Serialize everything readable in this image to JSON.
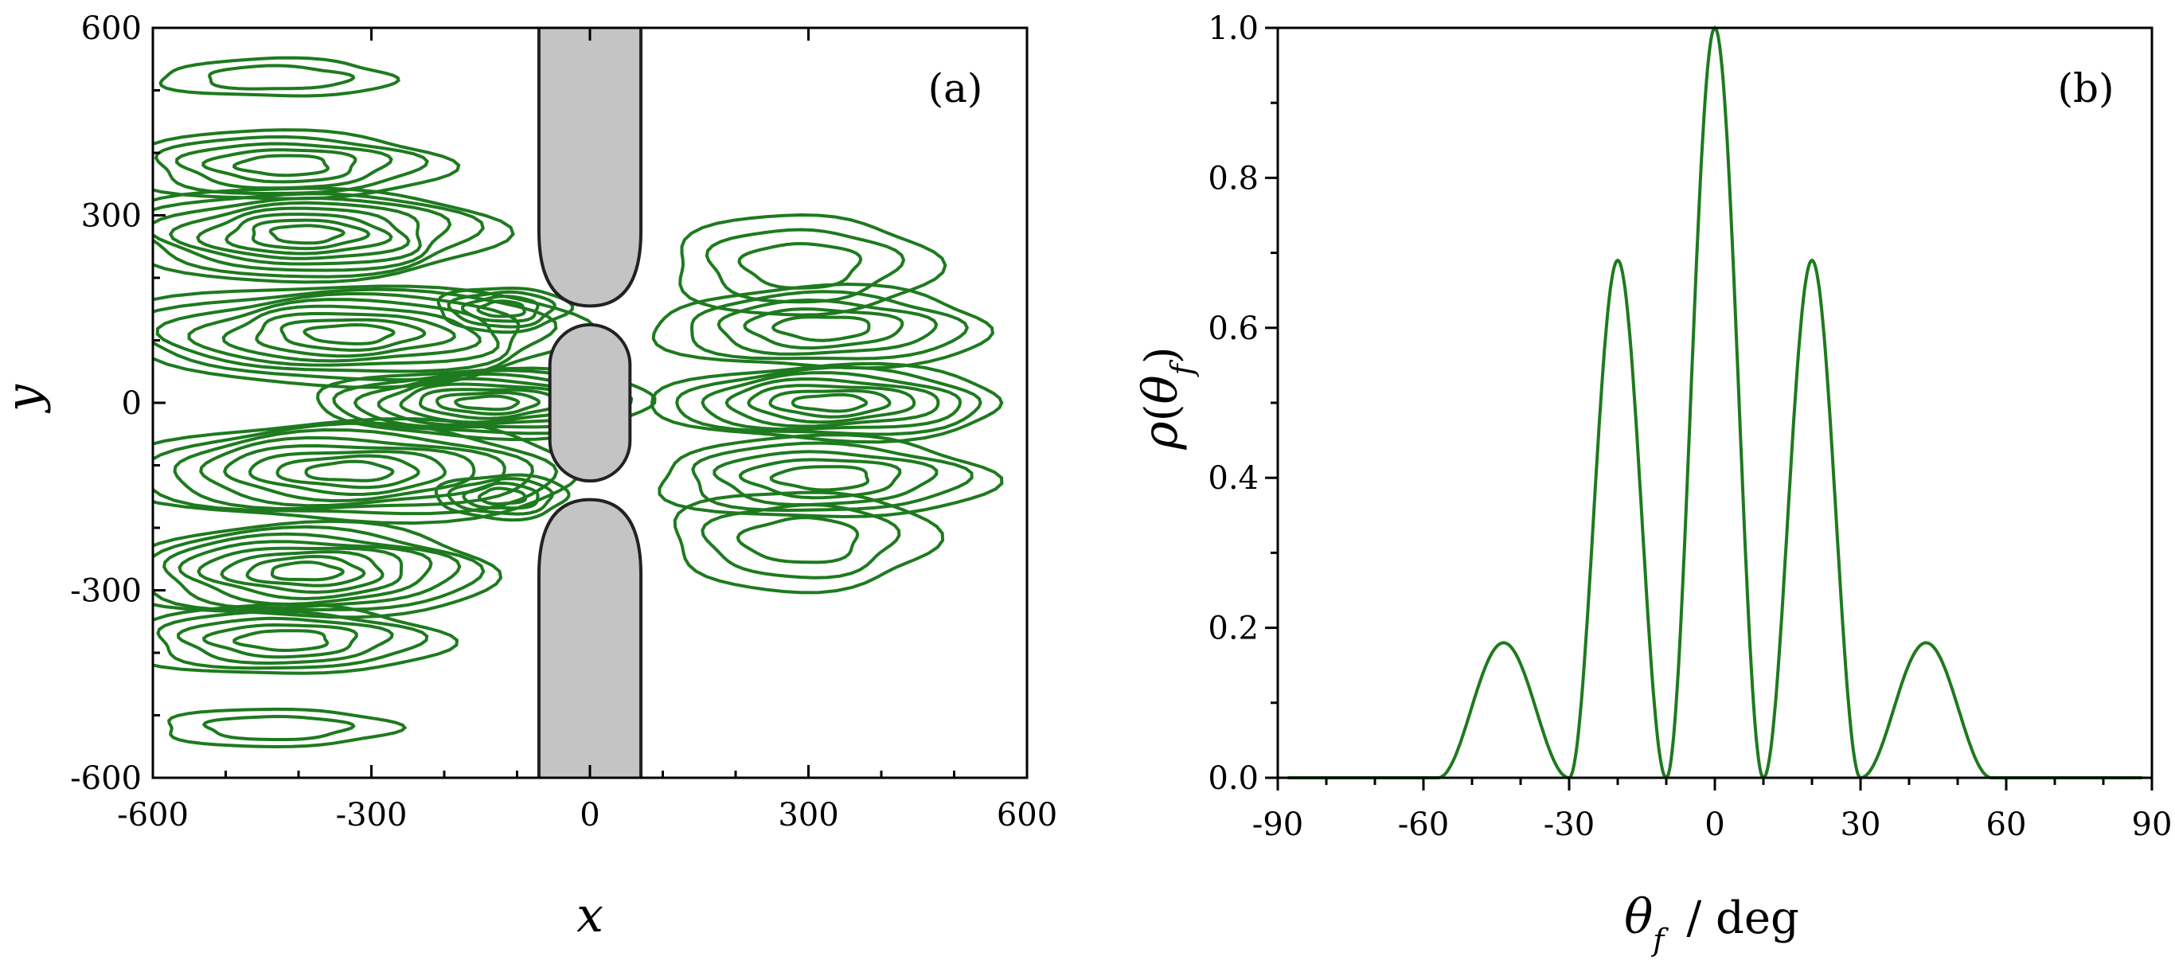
{
  "colors": {
    "contour": "#1e7a1e",
    "curve": "#1e7a1e",
    "barrier": "#c4c4c4",
    "barrier_edge": "#222222",
    "axis": "#000000"
  },
  "chart_data": [
    {
      "type": "contour",
      "panel_label": "(a)",
      "xlabel": "x",
      "ylabel": "y",
      "xlim": [
        -600,
        600
      ],
      "ylim": [
        -600,
        600
      ],
      "xticks": [
        -600,
        -300,
        0,
        300,
        600
      ],
      "yticks": [
        -600,
        -300,
        0,
        300,
        600
      ],
      "xtick_labels": [
        "-600",
        "-300",
        "0",
        "300",
        "600"
      ],
      "ytick_labels": [
        "-600",
        "-300",
        "0",
        "300",
        "600"
      ],
      "grid": false,
      "barrier": {
        "slit_half_width": 70,
        "upper_tip_y": 155,
        "lower_tip_y": -155,
        "center_pillar": {
          "x": 0,
          "y": 0,
          "half_width": 55,
          "half_height": 125
        }
      },
      "left_lobes": [
        {
          "cx": -430,
          "cy": 520,
          "rx": 160,
          "ry": 30,
          "levels": 2
        },
        {
          "cx": -420,
          "cy": 380,
          "rx": 220,
          "ry": 55,
          "levels": 5
        },
        {
          "cx": -390,
          "cy": 270,
          "rx": 260,
          "ry": 75,
          "levels": 8
        },
        {
          "cx": -330,
          "cy": 110,
          "rx": 320,
          "ry": 80,
          "levels": 8
        },
        {
          "cx": -140,
          "cy": 0,
          "rx": 230,
          "ry": 55,
          "levels": 8
        },
        {
          "cx": -330,
          "cy": -110,
          "rx": 320,
          "ry": 80,
          "levels": 8
        },
        {
          "cx": -390,
          "cy": -270,
          "rx": 260,
          "ry": 75,
          "levels": 8
        },
        {
          "cx": -420,
          "cy": -380,
          "rx": 220,
          "ry": 55,
          "levels": 5
        },
        {
          "cx": -430,
          "cy": -520,
          "rx": 160,
          "ry": 30,
          "levels": 2
        },
        {
          "cx": -120,
          "cy": 150,
          "rx": 90,
          "ry": 35,
          "levels": 4
        },
        {
          "cx": -120,
          "cy": -150,
          "rx": 90,
          "ry": 35,
          "levels": 4
        }
      ],
      "right_lobes": [
        {
          "cx": 330,
          "cy": 0,
          "rx": 240,
          "ry": 60,
          "levels": 7
        },
        {
          "cx": 320,
          "cy": 120,
          "rx": 230,
          "ry": 65,
          "levels": 5
        },
        {
          "cx": 320,
          "cy": -120,
          "rx": 230,
          "ry": 65,
          "levels": 5
        },
        {
          "cx": 290,
          "cy": 220,
          "rx": 180,
          "ry": 80,
          "levels": 3
        },
        {
          "cx": 290,
          "cy": -220,
          "rx": 180,
          "ry": 80,
          "levels": 3
        }
      ]
    },
    {
      "type": "line",
      "panel_label": "(b)",
      "xlabel": "θ",
      "xlabel_sub": "f",
      "xlabel_unit": "/ deg",
      "ylabel_rho": "ρ",
      "ylabel_theta": "θ",
      "ylabel_sub": "f",
      "xlim": [
        -90,
        90
      ],
      "ylim": [
        0,
        1.0
      ],
      "xticks": [
        -90,
        -60,
        -30,
        0,
        30,
        60,
        90
      ],
      "yticks": [
        0.0,
        0.2,
        0.4,
        0.6,
        0.8,
        1.0
      ],
      "xtick_labels": [
        "-90",
        "-60",
        "-30",
        "0",
        "30",
        "60",
        "90"
      ],
      "ytick_labels": [
        "0.0",
        "0.2",
        "0.4",
        "0.6",
        "0.8",
        "1.0"
      ],
      "grid": false,
      "peaks": [
        {
          "x": -40,
          "y": 0.18
        },
        {
          "x": -19,
          "y": 0.69
        },
        {
          "x": 0,
          "y": 1.0
        },
        {
          "x": 19,
          "y": 0.69
        },
        {
          "x": 40,
          "y": 0.18
        }
      ],
      "zeros": [
        -57,
        -30,
        -10,
        10,
        30,
        57
      ]
    }
  ]
}
